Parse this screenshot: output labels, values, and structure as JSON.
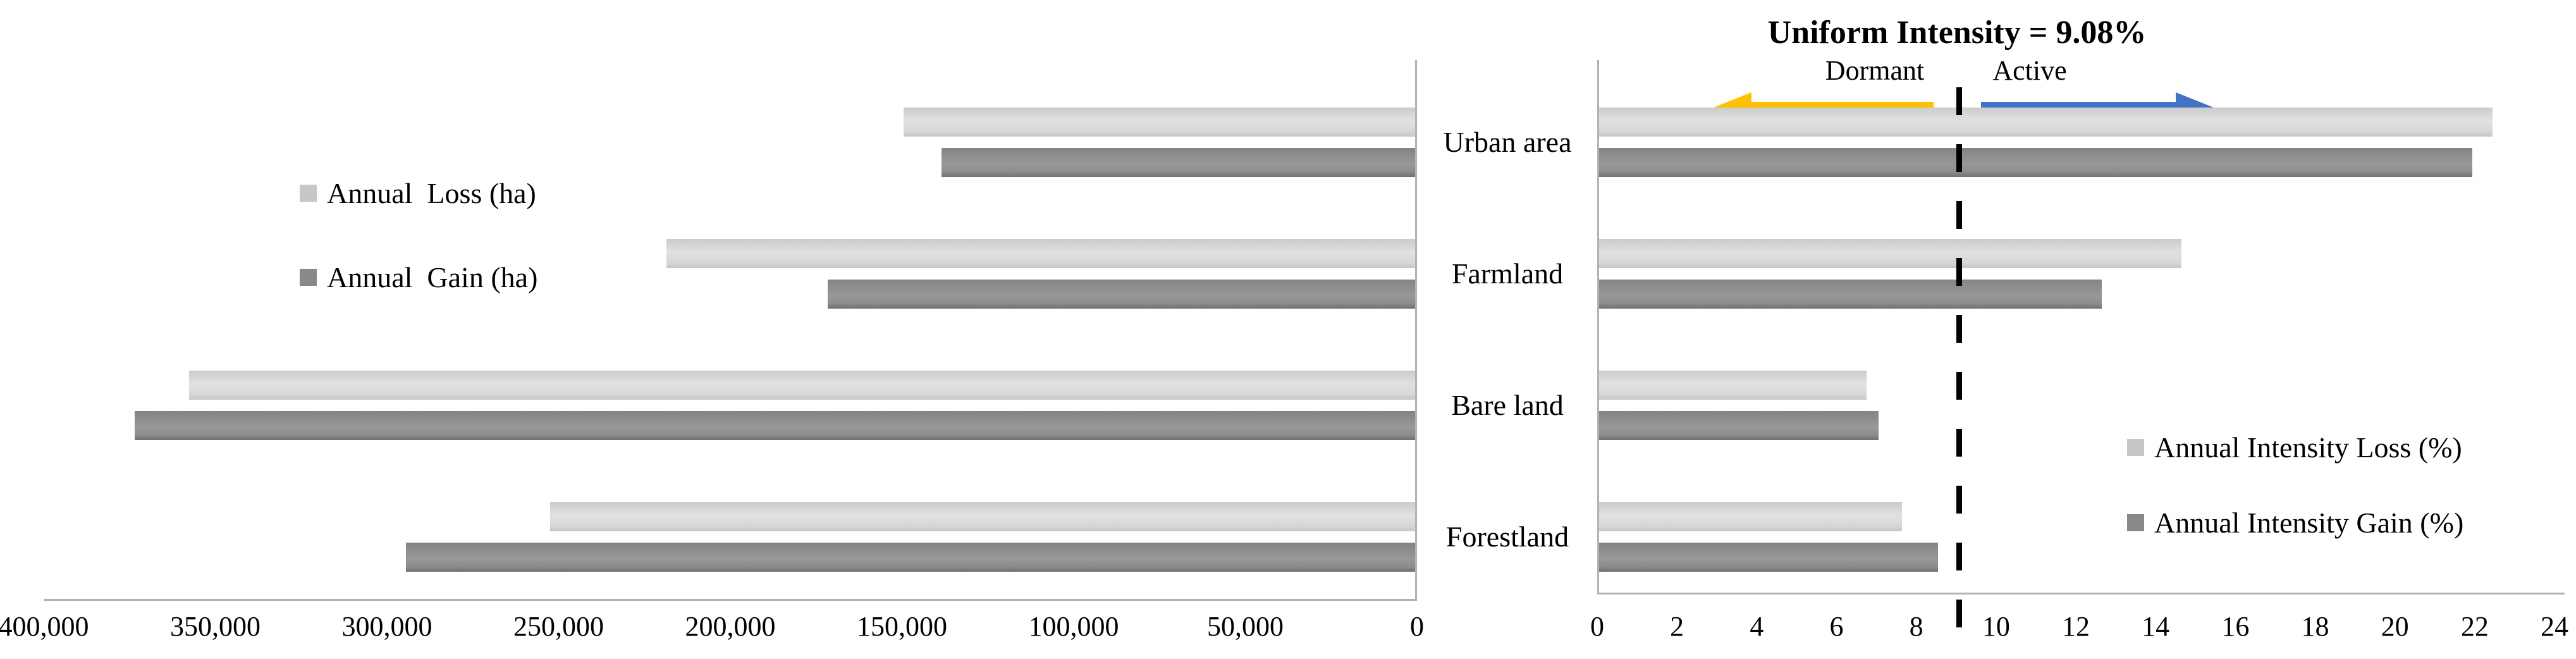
{
  "figure": {
    "title": "Uniform Intensity = 9.08%",
    "background": "#ffffff"
  },
  "categories": [
    "Urban area",
    "Farmland",
    "Bare land",
    "Forestland"
  ],
  "colors": {
    "loss_series": "#d9d9d9",
    "gain_series": "#8a8a8a",
    "dormant_arrow": "#ffc000",
    "active_arrow": "#4472c4",
    "axis_line": "#b3b3b3",
    "reference_line": "#000000"
  },
  "chart_data": [
    {
      "type": "bar",
      "name": "annual-area-change",
      "orientation": "horizontal-bars-extending-left",
      "categories": [
        "Urban area",
        "Farmland",
        "Bare land",
        "Forestland"
      ],
      "series": [
        {
          "name": "Annual  Loss (ha)",
          "color": "#d9d9d9",
          "values": [
            149000,
            218000,
            357000,
            252000
          ]
        },
        {
          "name": "Annual  Gain (ha)",
          "color": "#8a8a8a",
          "values": [
            138000,
            171000,
            373000,
            294000
          ]
        }
      ],
      "xlim": [
        400000,
        0
      ],
      "axis_reversed": true,
      "xtick_labels": [
        "400,000",
        "350,000",
        "300,000",
        "250,000",
        "200,000",
        "150,000",
        "100,000",
        "50,000",
        "0"
      ],
      "grid": false,
      "legend_position": "inside-upper-left"
    },
    {
      "type": "bar",
      "name": "annual-intensity-change",
      "orientation": "horizontal-bars-extending-right",
      "categories": [
        "Urban area",
        "Farmland",
        "Bare land",
        "Forestland"
      ],
      "series": [
        {
          "name": "Annual Intensity Loss (%)",
          "color": "#d9d9d9",
          "values": [
            22.4,
            14.6,
            6.7,
            7.6
          ]
        },
        {
          "name": "Annual Intensity Gain (%)",
          "color": "#8a8a8a",
          "values": [
            21.9,
            12.6,
            7.0,
            8.5
          ]
        }
      ],
      "xlim": [
        0,
        24
      ],
      "xtick_labels": [
        "0",
        "2",
        "4",
        "6",
        "8",
        "10",
        "12",
        "14",
        "16",
        "18",
        "20",
        "22",
        "24"
      ],
      "reference_line": {
        "label": "Uniform Intensity = 9.08%",
        "value": 9.08,
        "style": "dashed-black"
      },
      "annotations": [
        {
          "text": "Dormant",
          "side": "left-of-reference",
          "arrow_direction": "left",
          "arrow_color": "#ffc000"
        },
        {
          "text": "Active",
          "side": "right-of-reference",
          "arrow_direction": "right",
          "arrow_color": "#4472c4"
        }
      ],
      "grid": false,
      "legend_position": "inside-right"
    }
  ]
}
